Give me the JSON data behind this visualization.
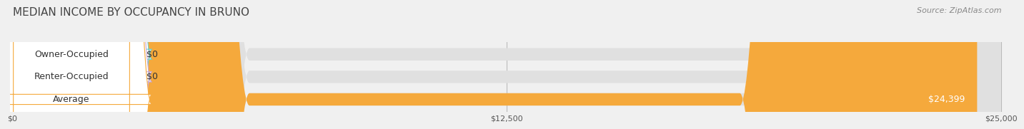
{
  "title": "MEDIAN INCOME BY OCCUPANCY IN BRUNO",
  "source": "Source: ZipAtlas.com",
  "categories": [
    "Owner-Occupied",
    "Renter-Occupied",
    "Average"
  ],
  "values": [
    0,
    0,
    24399
  ],
  "bar_colors": [
    "#6ecece",
    "#c9a8d4",
    "#f5a93c"
  ],
  "value_labels": [
    "$0",
    "$0",
    "$24,399"
  ],
  "xlim": [
    0,
    25000
  ],
  "xticks": [
    0,
    12500,
    25000
  ],
  "xtick_labels": [
    "$0",
    "$12,500",
    "$25,000"
  ],
  "bar_height": 0.55,
  "background_color": "#f0f0f0",
  "bar_bg_color": "#e0e0e0",
  "title_fontsize": 11,
  "label_fontsize": 9,
  "value_fontsize": 9,
  "source_fontsize": 8
}
